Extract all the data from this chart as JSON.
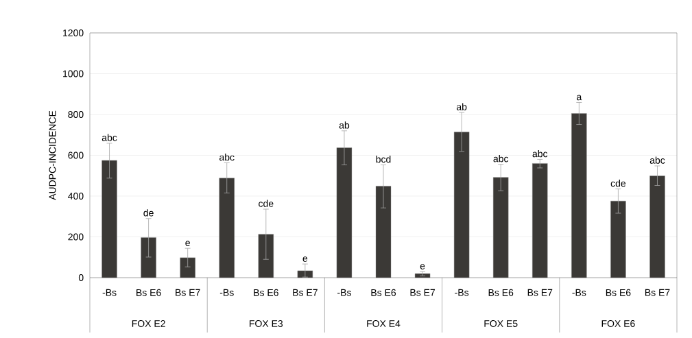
{
  "chart_data": {
    "type": "bar",
    "ylabel": "AUDPC-INCIDENCE",
    "categories": [
      "-Bs",
      "Bs E6",
      "Bs E7",
      "-Bs",
      "Bs E6",
      "Bs E7",
      "-Bs",
      "Bs E6",
      "Bs E7",
      "-Bs",
      "Bs E6",
      "Bs E7",
      "-Bs",
      "Bs E6",
      "Bs E7"
    ],
    "values": [
      575,
      197,
      98,
      488,
      213,
      34,
      637,
      449,
      20,
      714,
      492,
      560,
      805,
      376,
      499
    ],
    "errors": [
      [
        488,
        659
      ],
      [
        101,
        290
      ],
      [
        53,
        144
      ],
      [
        415,
        563
      ],
      [
        90,
        336
      ],
      [
        3,
        67
      ],
      [
        553,
        720
      ],
      [
        342,
        553
      ],
      [
        9,
        30
      ],
      [
        619,
        810
      ],
      [
        426,
        556
      ],
      [
        538,
        580
      ],
      [
        751,
        859
      ],
      [
        316,
        435
      ],
      [
        452,
        548
      ]
    ],
    "value_labels": [
      "abc",
      "de",
      "e",
      "abc",
      "cde",
      "e",
      "ab",
      "bcd",
      "e",
      "ab",
      "abc",
      "abc",
      "a",
      "cde",
      "abc"
    ],
    "annotations": [
      "FOX E2",
      "FOX E3",
      "FOX E4",
      "FOX E5",
      "FOX E6"
    ],
    "color": "#3b3936",
    "ylim": [
      0,
      1200
    ],
    "yticks": [
      0,
      200,
      400,
      600,
      800,
      1000,
      1200
    ],
    "grid": "y"
  }
}
